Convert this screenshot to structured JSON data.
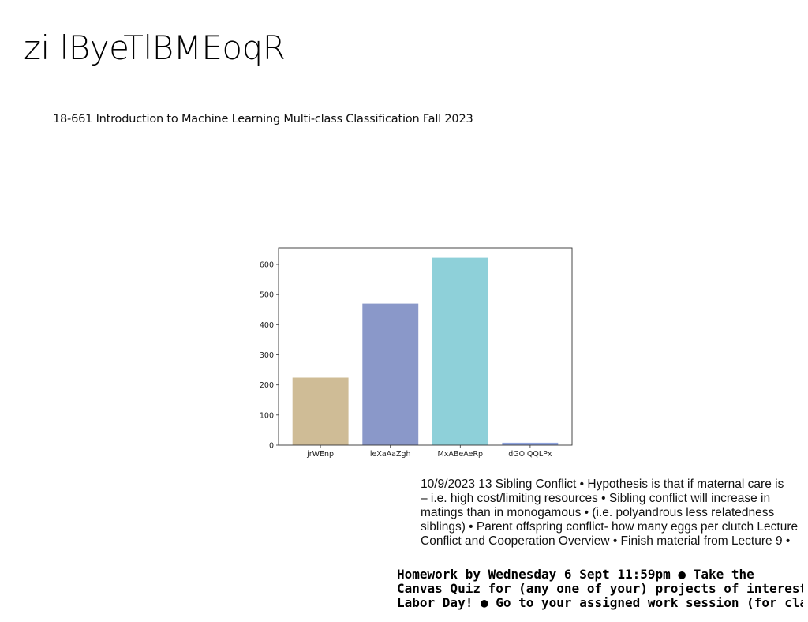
{
  "page": {
    "title": "zi lByeTlBMEoqR",
    "subtitle": "18-661 Introduction to Machine Learning Multi-class Classification Fall 2023",
    "notes_lines": [
      "10/9/2023 13 Sibling Conflict • Hypothesis is that if maternal care is",
      "– i.e. high cost/limiting resources • Sibling conflict will increase in",
      "matings than in monogamous • (i.e. polyandrous less relatedness",
      "siblings) • Parent offspring conflict- how many eggs per clutch Lecture",
      "Conflict and Cooperation Overview • Finish material from Lecture 9 •"
    ],
    "homework_lines": [
      "Homework by Wednesday 6 Sept 11:59pm ● Take the",
      "Canvas Quiz for (any one of your) projects of interest ●",
      "Labor Day! ● Go to your assigned work session (for class"
    ]
  },
  "chart_data": {
    "type": "bar",
    "categories": [
      "jrWEnp",
      "leXaAaZgh",
      "MxABeAeRp",
      "dGOIQQLPx"
    ],
    "values": [
      224,
      470,
      622,
      8
    ],
    "colors": [
      "#cfbc96",
      "#8a98c9",
      "#8ed0d9",
      "#8fa4de"
    ],
    "ylim": [
      0,
      655
    ],
    "yticks": [
      0,
      100,
      200,
      300,
      400,
      500,
      600
    ],
    "grid": false,
    "title": "",
    "xlabel": "",
    "ylabel": ""
  }
}
